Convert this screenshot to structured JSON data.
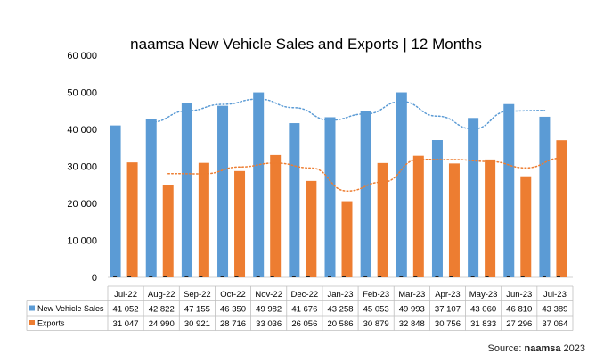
{
  "chart_data": {
    "type": "bar",
    "title": "naamsa New Vehicle Sales and Exports | 12 Months",
    "categories": [
      "Jul-22",
      "Aug-22",
      "Sep-22",
      "Oct-22",
      "Nov-22",
      "Dec-22",
      "Jan-23",
      "Feb-23",
      "Mar-23",
      "Apr-23",
      "May-23",
      "Jun-23",
      "Jul-23"
    ],
    "series": [
      {
        "name": "New Vehicle Sales",
        "color": "#5B9BD5",
        "values": [
          41052,
          42822,
          47155,
          46350,
          49982,
          41676,
          43258,
          45053,
          49993,
          37107,
          43060,
          46810,
          43389
        ],
        "labels": [
          "41 052",
          "42 822",
          "47 155",
          "46 350",
          "49 982",
          "41 676",
          "43 258",
          "45 053",
          "49 993",
          "37 107",
          "43 060",
          "46 810",
          "43 389"
        ]
      },
      {
        "name": "Exports",
        "color": "#ED7D31",
        "values": [
          31047,
          24990,
          30921,
          28716,
          33036,
          26056,
          20586,
          30879,
          32848,
          30756,
          31833,
          27296,
          37064
        ],
        "labels": [
          "31 047",
          "24 990",
          "30 921",
          "28 716",
          "33 036",
          "26 056",
          "20 586",
          "30 879",
          "32 848",
          "30 756",
          "31 833",
          "27 296",
          "37 064"
        ]
      }
    ],
    "ylim": [
      0,
      60000
    ],
    "yticks": [
      0,
      10000,
      20000,
      30000,
      40000,
      50000,
      60000
    ],
    "ytick_labels": [
      "0",
      "10 000",
      "20 000",
      "30 000",
      "40 000",
      "50 000",
      "60 000"
    ],
    "trendline": "dotted moving average per series",
    "legend": "data table"
  },
  "source": {
    "prefix": "Source: ",
    "brand": "naamsa",
    "suffix": " 2023"
  }
}
